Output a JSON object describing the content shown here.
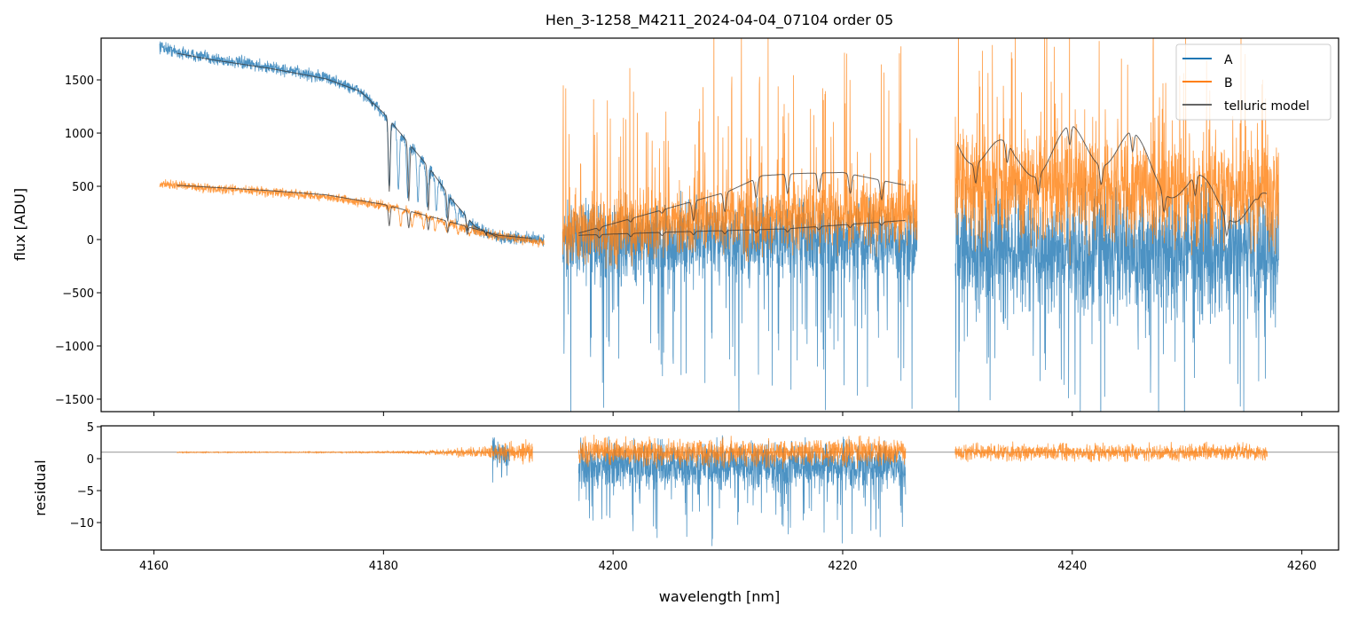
{
  "chart_data": {
    "type": "line",
    "title": "Hen_3-1258_M4211_2024-04-04_07104  order 05",
    "xlabel": "wavelength [nm]",
    "panels": [
      {
        "name": "flux",
        "ylabel": "flux [ADU]",
        "xlim": [
          4155.4,
          4263.2
        ],
        "ylim": [
          -1617,
          1892
        ],
        "yticks": [
          "1500",
          "1000",
          "500",
          "0",
          "−500",
          "−1000",
          "−1500"
        ],
        "ytick_values": [
          1500,
          1000,
          500,
          0,
          -500,
          -1000,
          -1500
        ],
        "legend": {
          "position": "top-right",
          "entries": [
            "A",
            "B",
            "telluric model"
          ]
        },
        "series": [
          {
            "name": "A",
            "color": "#1f77b4",
            "segments": [
              {
                "x": [
                  4160.5,
                  4162,
                  4165,
                  4170,
                  4175,
                  4178,
                  4180,
                  4182,
                  4184,
                  4186,
                  4188,
                  4190,
                  4194
                ],
                "y": [
                  1820,
                  1760,
                  1700,
                  1620,
                  1520,
                  1390,
                  1180,
                  920,
                  660,
                  360,
                  110,
                  20,
                  0
                ],
                "noise": 40,
                "lines": [
                  4180.5,
                  4181.3,
                  4182.1,
                  4183,
                  4183.8,
                  4184.6,
                  4185.5,
                  4186.4,
                  4187.3
                ]
              },
              {
                "x": [
                  4195.6,
                  4210,
                  4226.5
                ],
                "y": [
                  0,
                  0,
                  0
                ],
                "noise": 250,
                "neg_spikes": 1700
              },
              {
                "x": [
                  4229.8,
                  4245,
                  4258
                ],
                "y": [
                  -100,
                  -100,
                  -100
                ],
                "noise": 400,
                "neg_spikes": 1600
              }
            ]
          },
          {
            "name": "B",
            "color": "#ff7f0e",
            "segments": [
              {
                "x": [
                  4160.5,
                  4165,
                  4170,
                  4175,
                  4180,
                  4183,
                  4186,
                  4189,
                  4191,
                  4194
                ],
                "y": [
                  520,
                  480,
                  450,
                  400,
                  320,
                  240,
                  150,
                  50,
                  20,
                  -30
                ],
                "noise": 30,
                "lines": [
                  4181.5,
                  4182.5,
                  4183.5,
                  4184.5,
                  4185.5,
                  4186.5,
                  4187.5
                ]
              },
              {
                "x": [
                  4195.6,
                  4205,
                  4215,
                  4226.5
                ],
                "y": [
                  50,
                  150,
                  200,
                  250
                ],
                "noise": 220,
                "pos_spikes": 1800
              },
              {
                "x": [
                  4229.8,
                  4245,
                  4258
                ],
                "y": [
                  500,
                  450,
                  400
                ],
                "noise": 350,
                "pos_spikes": 1600
              }
            ]
          },
          {
            "name": "telluric model",
            "color": "#333333",
            "segments": [
              {
                "x": [
                  4162,
                  4165,
                  4170,
                  4175,
                  4178,
                  4180,
                  4182,
                  4184,
                  4186,
                  4188,
                  4190
                ],
                "y": [
                  1750,
                  1690,
                  1610,
                  1510,
                  1390,
                  1190,
                  930,
                  670,
                  370,
                  120,
                  20
                ]
              },
              {
                "x": [
                  4162,
                  4170,
                  4175,
                  4180,
                  4185,
                  4190,
                  4193
                ],
                "y": [
                  510,
                  460,
                  420,
                  330,
                  190,
                  40,
                  10
                ]
              },
              {
                "x": [
                  4197,
                  4205,
                  4215,
                  4225.5
                ],
                "y": [
                  40,
                  70,
                  100,
                  180
                ]
              },
              {
                "x": [
                  4197,
                  4200,
                  4205,
                  4210,
                  4213,
                  4216,
                  4220,
                  4225.5
                ],
                "y": [
                  60,
                  150,
                  300,
                  450,
                  600,
                  620,
                  630,
                  510
                ]
              },
              {
                "x": [
                  4230,
                  4235,
                  4240,
                  4245,
                  4250,
                  4253,
                  4257
                ],
                "y": [
                  950,
                  700,
                  900,
                  850,
                  450,
                  380,
                  250
                ]
              }
            ]
          }
        ]
      },
      {
        "name": "residual",
        "ylabel": "residual",
        "xlim": [
          4155.4,
          4263.2
        ],
        "ylim": [
          -14.3,
          5.14
        ],
        "yticks": [
          "5",
          "0",
          "−5",
          "−10"
        ],
        "ytick_values": [
          5,
          0,
          -5,
          -10
        ],
        "reference_line": 1,
        "series": [
          {
            "name": "A",
            "segments": [
              {
                "x": [
                  4189.5,
                  4191
                ],
                "y": [
                  1,
                  1
                ],
                "noise": 1.5,
                "neg_spikes": 8
              },
              {
                "x": [
                  4197,
                  4225.5
                ],
                "y": [
                  -1,
                  -1
                ],
                "noise": 2.5,
                "neg_spikes": 12
              }
            ]
          },
          {
            "name": "B",
            "segments": [
              {
                "x": [
                  4162,
                  4180,
                  4188,
                  4193
                ],
                "y": [
                  1,
                  1,
                  1,
                  1
                ],
                "noise_ramp": [
                  0.05,
                  1.5
                ]
              },
              {
                "x": [
                  4197,
                  4225.5
                ],
                "y": [
                  1,
                  1
                ],
                "noise": 1.5
              },
              {
                "x": [
                  4229.8,
                  4257
                ],
                "y": [
                  1,
                  1
                ],
                "noise": 0.9
              }
            ]
          }
        ]
      }
    ],
    "xticks": [
      "4160",
      "4180",
      "4200",
      "4220",
      "4240",
      "4260"
    ],
    "xtick_values": [
      4160,
      4180,
      4200,
      4220,
      4240,
      4260
    ]
  }
}
